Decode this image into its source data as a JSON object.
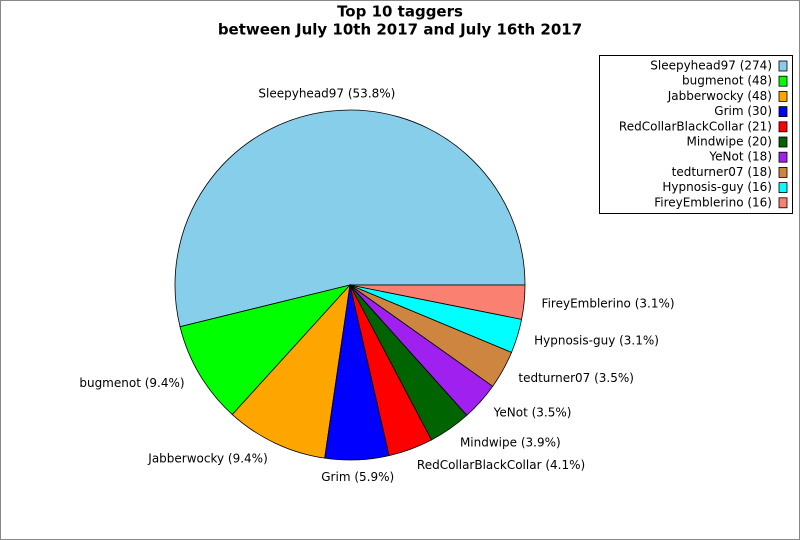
{
  "chart_data": {
    "type": "pie",
    "title": "Top 10 taggers",
    "subtitle": "between July 10th 2017 and July 16th 2017",
    "categories": [
      "Sleepyhead97",
      "bugmenot",
      "Jabberwocky",
      "Grim",
      "RedCollarBlackCollar",
      "Mindwipe",
      "YeNot",
      "tedturner07",
      "Hypnosis-guy",
      "FireyEmblerino"
    ],
    "values": [
      274,
      48,
      48,
      30,
      21,
      20,
      18,
      18,
      16,
      16
    ],
    "value_labels": [
      "Sleepyhead97 (53.8%)",
      "bugmenot (9.4%)",
      "Jabberwocky (9.4%)",
      "Grim (5.9%)",
      "RedCollarBlackCollar (4.1%)",
      "Mindwipe (3.9%)",
      "YeNot (3.5%)",
      "tedturner07 (3.5%)",
      "Hypnosis-guy (3.1%)",
      "FireyEmblerino (3.1%)"
    ],
    "legend_labels": [
      "Sleepyhead97 (274)",
      "bugmenot (48)",
      "Jabberwocky (48)",
      "Grim (30)",
      "RedCollarBlackCollar (21)",
      "Mindwipe (20)",
      "YeNot (18)",
      "tedturner07 (18)",
      "Hypnosis-guy (16)",
      "FireyEmblerino (16)"
    ],
    "colors": [
      "#87ceeb",
      "#00ff00",
      "#ffa500",
      "#0000ff",
      "#ff0000",
      "#006400",
      "#a020f0",
      "#cd853f",
      "#00ffff",
      "#fa8072"
    ],
    "legend_position": "upper right"
  }
}
